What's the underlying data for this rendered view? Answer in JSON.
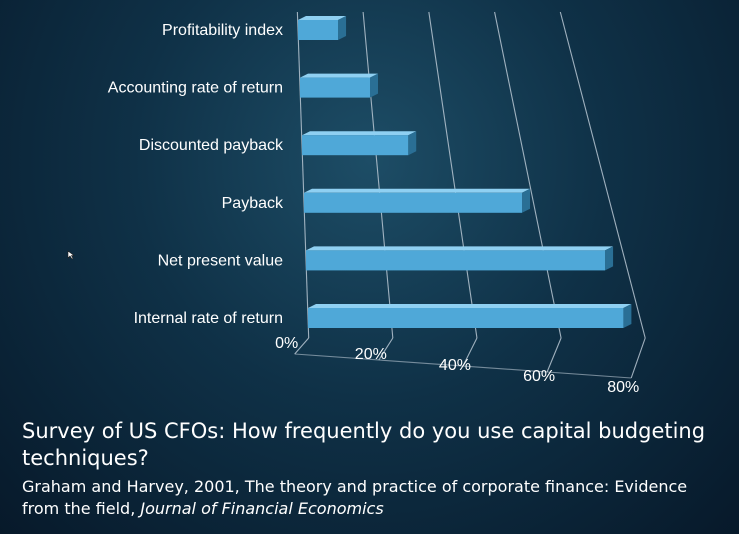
{
  "chart_data": {
    "type": "bar",
    "orientation": "horizontal",
    "categories": [
      "Profitability index",
      "Accounting rate of return",
      "Discounted payback",
      "Payback",
      "Net present value",
      "Internal rate of return"
    ],
    "values": [
      12,
      20,
      29,
      57,
      75,
      76
    ],
    "xlim": [
      0,
      80
    ],
    "ticks": [
      0,
      20,
      40,
      60,
      80
    ],
    "tick_labels": [
      "0%",
      "20%",
      "40%",
      "60%",
      "80%"
    ],
    "bar_color": "#4fa8d8",
    "grid": true,
    "style": "3d-perspective"
  },
  "caption": {
    "title": "Survey of US CFOs: How frequently do you use capital budgeting techniques?",
    "citation_main": "Graham and Harvey, 2001, The theory and practice of corporate finance: Evidence from the field, ",
    "citation_journal": "Journal of Financial Economics"
  }
}
